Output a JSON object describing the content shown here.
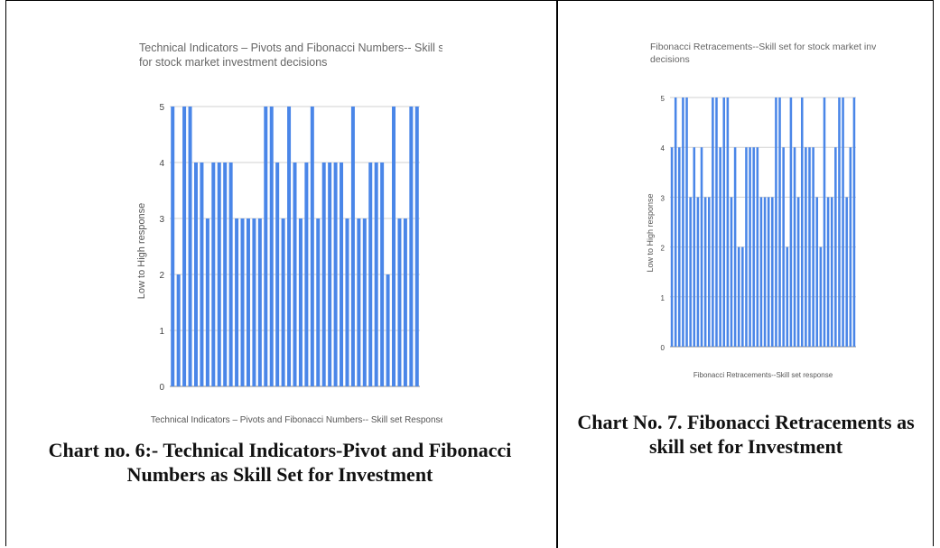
{
  "chart_data": [
    {
      "type": "bar",
      "title_lines": [
        "Technical Indicators – Pivots and Fibonacci Numbers-- Skill set",
        "for stock market investment decisions"
      ],
      "xlabel": "Technical Indicators – Pivots and Fibonacci Numbers-- Skill set Response",
      "ylabel": "Low to High response",
      "ylim": [
        0,
        5
      ],
      "yticks": [
        "0",
        "1",
        "2",
        "3",
        "4",
        "5"
      ],
      "grid": true,
      "color": "#4a86e8",
      "values": [
        5,
        2,
        5,
        5,
        4,
        4,
        3,
        4,
        4,
        4,
        4,
        3,
        3,
        3,
        3,
        3,
        5,
        5,
        4,
        3,
        5,
        4,
        3,
        4,
        5,
        3,
        4,
        4,
        4,
        4,
        3,
        5,
        3,
        3,
        4,
        4,
        4,
        2,
        5,
        3,
        3,
        5,
        5
      ]
    },
    {
      "type": "bar",
      "title_lines": [
        "Fibonacci Retracements--Skill set for stock market investment",
        "decisions"
      ],
      "xlabel": "Fibonacci Retracements--Skill set response",
      "ylabel": "Low to High response",
      "ylim": [
        0,
        5
      ],
      "yticks": [
        "0",
        "1",
        "2",
        "3",
        "4",
        "5"
      ],
      "grid": true,
      "color": "#4a86e8",
      "values": [
        4,
        5,
        4,
        5,
        5,
        3,
        4,
        3,
        4,
        3,
        3,
        5,
        5,
        4,
        5,
        5,
        3,
        4,
        2,
        2,
        4,
        4,
        4,
        4,
        3,
        3,
        3,
        3,
        5,
        5,
        4,
        2,
        5,
        4,
        3,
        5,
        4,
        4,
        4,
        3,
        2,
        5,
        3,
        3,
        4,
        5,
        5,
        3,
        4,
        5
      ]
    }
  ],
  "captions": {
    "chart6": "Chart no. 6:- Technical Indicators-Pivot and Fibonacci Numbers as Skill Set for Investment",
    "chart7": "Chart No. 7. Fibonacci Retracements as skill set for Investment"
  }
}
